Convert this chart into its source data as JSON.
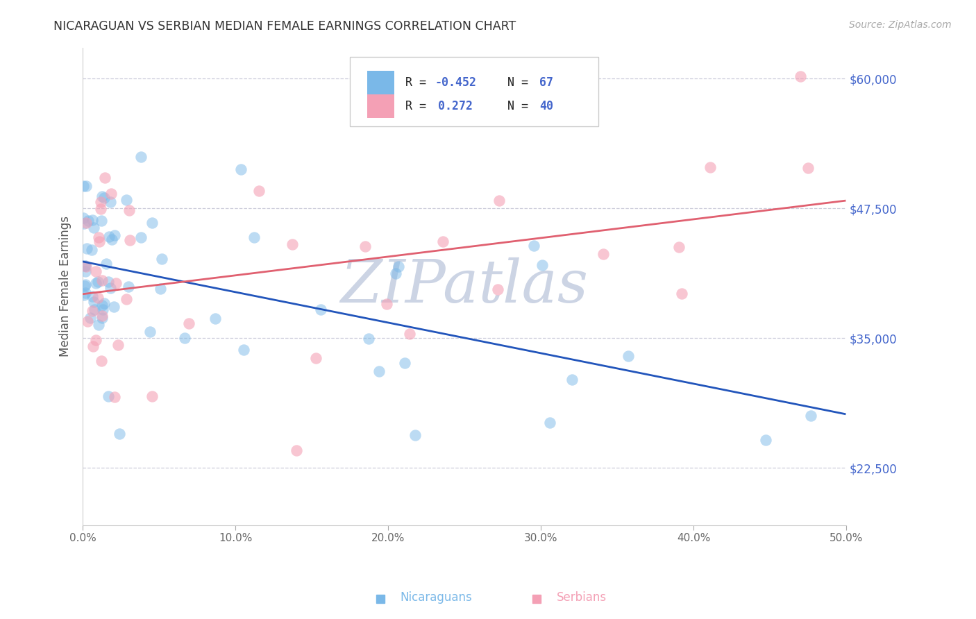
{
  "title": "NICARAGUAN VS SERBIAN MEDIAN FEMALE EARNINGS CORRELATION CHART",
  "source": "Source: ZipAtlas.com",
  "ylabel": "Median Female Earnings",
  "xlim": [
    0.0,
    0.5
  ],
  "ylim": [
    17000,
    63000
  ],
  "yticks": [
    22500,
    35000,
    47500,
    60000
  ],
  "ytick_labels": [
    "$22,500",
    "$35,000",
    "$47,500",
    "$60,000"
  ],
  "xticks": [
    0.0,
    0.1,
    0.2,
    0.3,
    0.4,
    0.5
  ],
  "xtick_labels": [
    "0.0%",
    "10.0%",
    "20.0%",
    "30.0%",
    "40.0%",
    "50.0%"
  ],
  "nicaraguan_color": "#7ab8e8",
  "serbian_color": "#f4a0b5",
  "trend_blue_color": "#2255bb",
  "trend_pink_color": "#e06070",
  "background_color": "#ffffff",
  "grid_color": "#c8c8d8",
  "title_color": "#333333",
  "ytick_color": "#4466cc",
  "watermark_text": "ZIPatlas",
  "watermark_color": "#ccd4e4",
  "axis_label_color": "#555555",
  "legend_text_color_blue": "#2255bb",
  "legend_text_color_values": "#4466dd",
  "legend_R_label_1": "R = ",
  "legend_R_val_1": "-0.452",
  "legend_N_label_1": "N = ",
  "legend_N_val_1": "67",
  "legend_R_label_2": "R =  ",
  "legend_R_val_2": "0.272",
  "legend_N_label_2": "N = ",
  "legend_N_val_2": "40",
  "bottom_label_1": "Nicaraguans",
  "bottom_label_2": "Serbians"
}
